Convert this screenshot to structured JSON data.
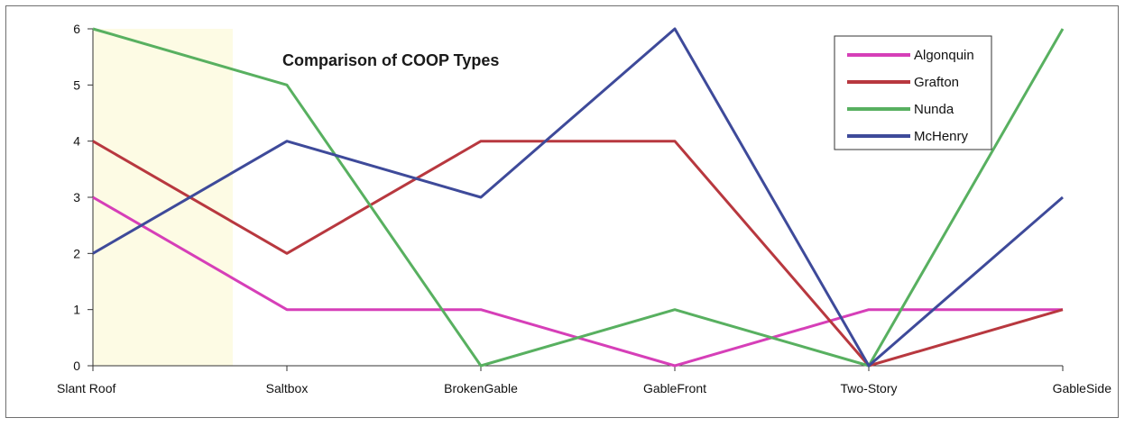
{
  "chart_data": {
    "type": "line",
    "title": "Comparison of COOP Types",
    "categories": [
      "Slant Roof",
      "Saltbox",
      "BrokenGable",
      "GableFront",
      "Two-Story",
      "GableSide"
    ],
    "ylim": [
      0,
      6
    ],
    "yticks": [
      0,
      1,
      2,
      3,
      4,
      5,
      6
    ],
    "grid": false,
    "legend_position": "top-right",
    "series": [
      {
        "name": "Algonquin",
        "color": "#d63fb8",
        "values": [
          3,
          1,
          1,
          0,
          1,
          1
        ]
      },
      {
        "name": "Grafton",
        "color": "#b8383f",
        "values": [
          4,
          2,
          4,
          4,
          0,
          1
        ]
      },
      {
        "name": "Nunda",
        "color": "#58b060",
        "values": [
          6,
          5,
          0,
          1,
          0,
          6
        ]
      },
      {
        "name": "McHenry",
        "color": "#3e4a9a",
        "values": [
          2,
          4,
          3,
          6,
          0,
          3
        ]
      }
    ]
  }
}
